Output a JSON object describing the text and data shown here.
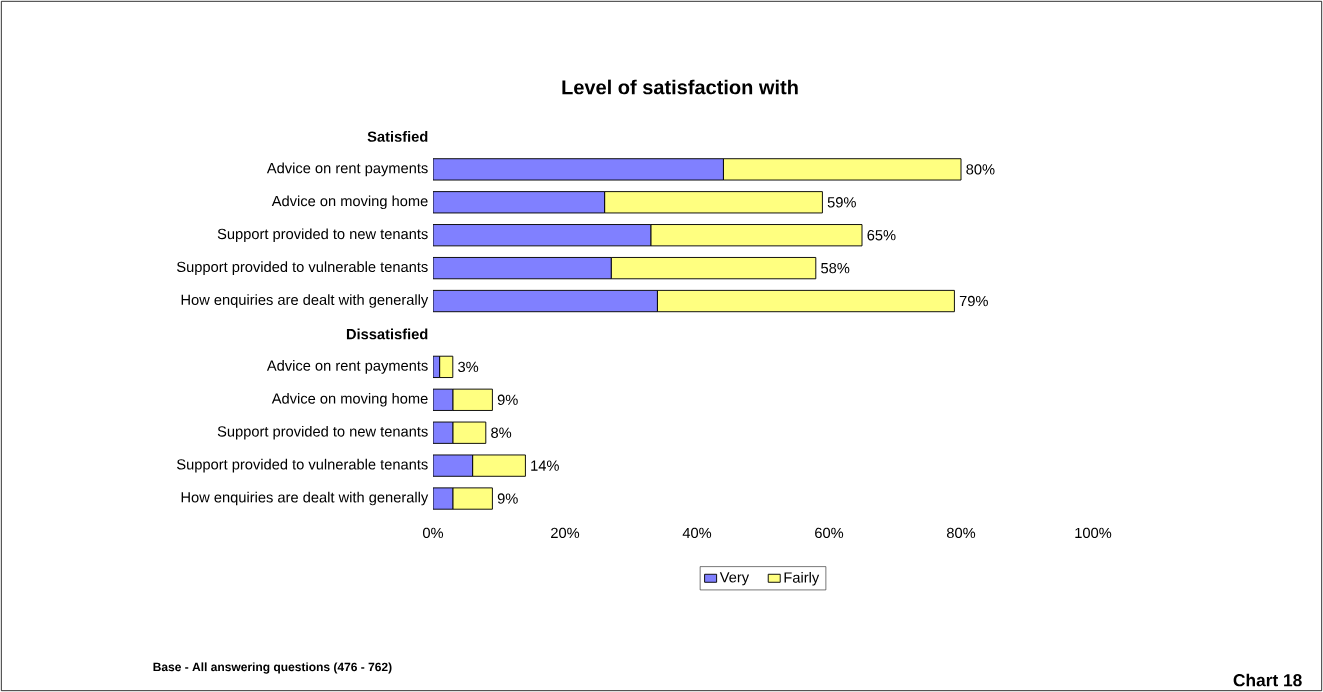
{
  "chart_data": {
    "type": "bar",
    "orientation": "horizontal",
    "stacked": true,
    "title": "Level of satisfaction with",
    "categories": [
      "Satisfied",
      "Advice on rent payments",
      "Advice on moving home",
      "Support provided to new tenants",
      "Support provided to vulnerable tenants",
      "How enquiries are dealt with generally",
      "Dissatisfied",
      "Advice on rent payments",
      "Advice on moving home",
      "Support provided to new tenants",
      "Support provided to vulnerable tenants",
      "How enquiries are dealt with generally"
    ],
    "series": [
      {
        "name": "Very",
        "color": "#8080ff",
        "values": [
          null,
          44,
          26,
          33,
          27,
          34,
          null,
          1,
          3,
          3,
          6,
          3
        ]
      },
      {
        "name": "Fairly",
        "color": "#ffff80",
        "values": [
          null,
          36,
          33,
          32,
          31,
          45,
          null,
          2,
          6,
          5,
          8,
          6
        ]
      }
    ],
    "totals": [
      null,
      "80%",
      "59%",
      "65%",
      "58%",
      "79%",
      null,
      "3%",
      "9%",
      "8%",
      "14%",
      "9%"
    ],
    "xlim": [
      0,
      100
    ],
    "xticks": [
      {
        "value": 0,
        "label": "0%"
      },
      {
        "value": 20,
        "label": "20%"
      },
      {
        "value": 40,
        "label": "40%"
      },
      {
        "value": 60,
        "label": "60%"
      },
      {
        "value": 80,
        "label": "80%"
      },
      {
        "value": 100,
        "label": "100%"
      }
    ],
    "grid": false,
    "legend": "bottom",
    "annotations": [
      "Base - All answering questions (476 - 762)",
      "Chart 18"
    ]
  }
}
